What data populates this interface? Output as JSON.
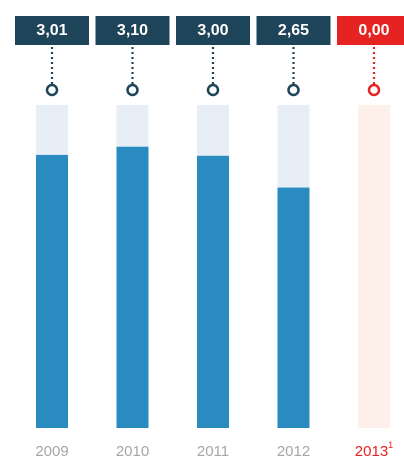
{
  "chart_data": {
    "type": "bar",
    "categories": [
      "2009",
      "2010",
      "2011",
      "2012",
      "2013"
    ],
    "category_notes": [
      null,
      null,
      null,
      null,
      "1"
    ],
    "values": [
      3.01,
      3.1,
      3.0,
      2.65,
      0.0
    ],
    "value_labels": [
      "3,01",
      "3,10",
      "3,00",
      "2,65",
      "0,00"
    ],
    "color": "#2a8bc0",
    "colors": [
      "#1e4459",
      "#1e4459",
      "#1e4459",
      "#1e4459",
      "#e52421"
    ],
    "track_colors": [
      "#e8eef5",
      "#e8eef5",
      "#e8eef5",
      "#e8eef5",
      "#fdf0eb"
    ],
    "category_colors": [
      "#a6a6a6",
      "#a6a6a6",
      "#a6a6a6",
      "#a6a6a6",
      "#e52421"
    ],
    "ylim": [
      0,
      3.56
    ]
  }
}
